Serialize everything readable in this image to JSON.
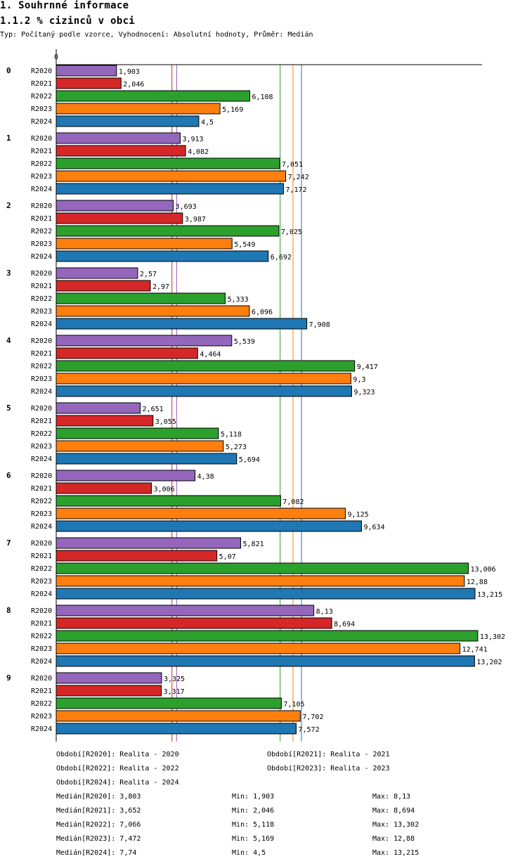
{
  "header": {
    "section_title": "1. Souhrnné informace",
    "chart_title": "1.1.2 % cizinců v obci",
    "subtitle": "Typ: Počítaný podle vzorce, Vyhodnocení: Absolutní hodnoty, Průměr: Medián"
  },
  "chart_data": {
    "type": "bar",
    "orientation": "horizontal",
    "title": "1.1.2 % cizinců v obci",
    "axis_tick_label": "0",
    "xlim": [
      0,
      13.4
    ],
    "categories": [
      "0",
      "1",
      "2",
      "3",
      "4",
      "5",
      "6",
      "7",
      "8",
      "9"
    ],
    "series": [
      {
        "name": "R2020",
        "color": "#9467bd",
        "values": [
          1.903,
          3.913,
          3.693,
          2.57,
          5.539,
          2.651,
          4.38,
          5.821,
          8.13,
          3.325
        ],
        "labels": [
          "1,903",
          "3,913",
          "3,693",
          "2,57",
          "5,539",
          "2,651",
          "4,38",
          "5,821",
          "8,13",
          "3,325"
        ]
      },
      {
        "name": "R2021",
        "color": "#d62728",
        "values": [
          2.046,
          4.082,
          3.987,
          2.97,
          4.464,
          3.055,
          3.006,
          5.07,
          8.694,
          3.317
        ],
        "labels": [
          "2,046",
          "4,082",
          "3,987",
          "2,97",
          "4,464",
          "3,055",
          "3,006",
          "5,07",
          "8,694",
          "3,317"
        ]
      },
      {
        "name": "R2022",
        "color": "#2ca02c",
        "values": [
          6.108,
          7.051,
          7.025,
          5.333,
          9.417,
          5.118,
          7.082,
          13.006,
          13.302,
          7.105
        ],
        "labels": [
          "6,108",
          "7,051",
          "7,025",
          "5,333",
          "9,417",
          "5,118",
          "7,082",
          "13,006",
          "13,302",
          "7,105"
        ]
      },
      {
        "name": "R2023",
        "color": "#ff7f0e",
        "values": [
          5.169,
          7.242,
          5.549,
          6.096,
          9.3,
          5.273,
          9.125,
          12.88,
          12.741,
          7.702
        ],
        "labels": [
          "5,169",
          "7,242",
          "5,549",
          "6,096",
          "9,3",
          "5,273",
          "9,125",
          "12,88",
          "12,741",
          "7,702"
        ]
      },
      {
        "name": "R2024",
        "color": "#1f77b4",
        "values": [
          4.5,
          7.172,
          6.692,
          7.908,
          9.323,
          5.694,
          9.634,
          13.215,
          13.202,
          7.572
        ],
        "labels": [
          "4,5",
          "7,172",
          "6,692",
          "7,908",
          "9,323",
          "5,694",
          "9,634",
          "13,215",
          "13,202",
          "7,572"
        ]
      }
    ],
    "median_lines": [
      {
        "series": "R2020",
        "value": 3.803,
        "color": "#9467bd"
      },
      {
        "series": "R2021",
        "value": 3.652,
        "color": "#d62728"
      },
      {
        "series": "R2022",
        "value": 7.066,
        "color": "#2ca02c"
      },
      {
        "series": "R2023",
        "value": 7.472,
        "color": "#ff7f0e"
      },
      {
        "series": "R2024",
        "value": 7.74,
        "color": "#1f77b4"
      }
    ]
  },
  "legend": {
    "periods": [
      "Období[R2020]: Realita - 2020",
      "Období[R2021]: Realita - 2021",
      "Období[R2022]: Realita - 2022",
      "Období[R2023]: Realita - 2023",
      "Období[R2024]: Realita - 2024"
    ],
    "stats": [
      {
        "median": "Medián[R2020]: 3,803",
        "min": "Min: 1,903",
        "max": "Max: 8,13"
      },
      {
        "median": "Medián[R2021]: 3,652",
        "min": "Min: 2,046",
        "max": "Max: 8,694"
      },
      {
        "median": "Medián[R2022]: 7,066",
        "min": "Min: 5,118",
        "max": "Max: 13,302"
      },
      {
        "median": "Medián[R2023]: 7,472",
        "min": "Min: 5,169",
        "max": "Max: 12,88"
      },
      {
        "median": "Medián[R2024]: 7,74",
        "min": "Min: 4,5",
        "max": "Max: 13,215"
      }
    ]
  }
}
